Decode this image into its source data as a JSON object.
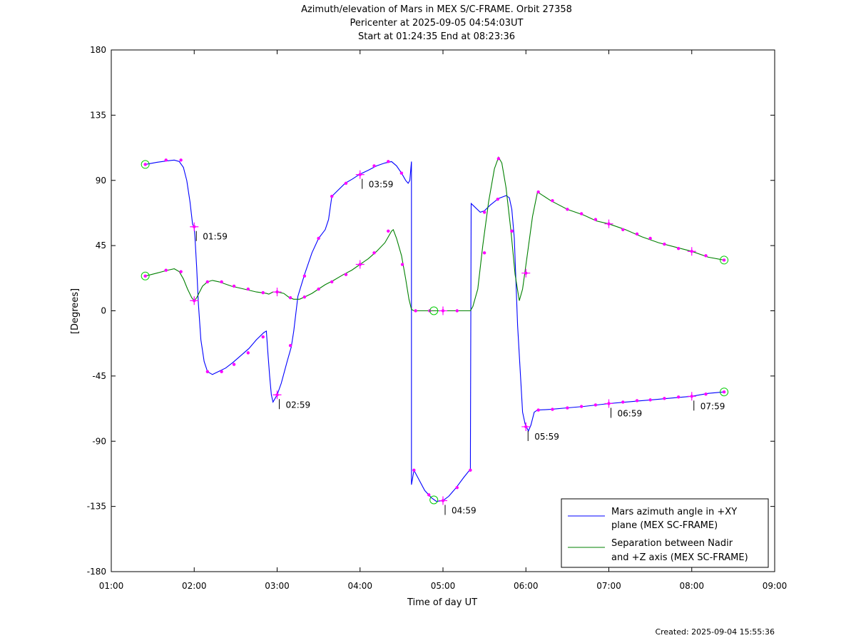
{
  "chart_data": {
    "type": "line",
    "title_lines": [
      "Azimuth/elevation of Mars in MEX S/C-FRAME.  Orbit 27358",
      "Pericenter at 2025-09-05 04:54:03UT",
      "Start at 01:24:35 End at 08:23:36"
    ],
    "xlabel": "Time of day UT",
    "ylabel": "[Degrees]",
    "footer": "Created: 2025-09-04 15:55:36",
    "xlim_hours": [
      1,
      9
    ],
    "ylim": [
      -180,
      180
    ],
    "x_ticks": [
      "01:00",
      "02:00",
      "03:00",
      "04:00",
      "05:00",
      "06:00",
      "07:00",
      "08:00",
      "09:00"
    ],
    "y_ticks": [
      "180",
      "135",
      "90",
      "45",
      "0",
      "-45",
      "-90",
      "-135",
      "-180"
    ],
    "legend_placement": "bottom-right",
    "legend": [
      {
        "line1": "Mars azimuth angle in +XY",
        "line2": "plane (MEX SC-FRAME)",
        "color": "#0000ff"
      },
      {
        "line1": "Separation between Nadir",
        "line2": "and +Z axis (MEX SC-FRAME)",
        "color": "#008000"
      }
    ],
    "marker_color": "#ff00ff",
    "circle_color": "#00cc00",
    "series": [
      {
        "color": "#0000ff",
        "points": [
          [
            1.41,
            101
          ],
          [
            1.55,
            102.5
          ],
          [
            1.68,
            103.5
          ],
          [
            1.76,
            104
          ],
          [
            1.82,
            103
          ],
          [
            1.87,
            99
          ],
          [
            1.91,
            90
          ],
          [
            1.95,
            75
          ],
          [
            1.98,
            60
          ],
          [
            2.0,
            57
          ],
          [
            2.01,
            50
          ],
          [
            2.03,
            30
          ],
          [
            2.05,
            5
          ],
          [
            2.08,
            -20
          ],
          [
            2.12,
            -35
          ],
          [
            2.16,
            -42
          ],
          [
            2.22,
            -44
          ],
          [
            2.29,
            -42
          ],
          [
            2.38,
            -39.5
          ],
          [
            2.47,
            -35.5
          ],
          [
            2.56,
            -31
          ],
          [
            2.66,
            -26
          ],
          [
            2.75,
            -20
          ],
          [
            2.84,
            -15
          ],
          [
            2.87,
            -14
          ],
          [
            2.89,
            -30
          ],
          [
            2.91,
            -45
          ],
          [
            2.93,
            -58
          ],
          [
            2.95,
            -63
          ],
          [
            2.98,
            -60
          ],
          [
            3.0,
            -58
          ],
          [
            3.05,
            -50
          ],
          [
            3.12,
            -35
          ],
          [
            3.17,
            -25
          ],
          [
            3.2,
            -14
          ],
          [
            3.25,
            10
          ],
          [
            3.33,
            25
          ],
          [
            3.42,
            40
          ],
          [
            3.5,
            50
          ],
          [
            3.58,
            56
          ],
          [
            3.62,
            63
          ],
          [
            3.66,
            79
          ],
          [
            3.73,
            83
          ],
          [
            3.82,
            88
          ],
          [
            3.91,
            91
          ],
          [
            3.99,
            94
          ],
          [
            4.1,
            97
          ],
          [
            4.2,
            100
          ],
          [
            4.3,
            102
          ],
          [
            4.38,
            103
          ],
          [
            4.44,
            100
          ],
          [
            4.5,
            95
          ],
          [
            4.55,
            90
          ],
          [
            4.58,
            88
          ],
          [
            4.6,
            90
          ],
          [
            4.62,
            103
          ],
          [
            4.62,
            -120
          ],
          [
            4.65,
            -110
          ],
          [
            4.78,
            -124
          ],
          [
            4.86,
            -129
          ],
          [
            4.92,
            -131.5
          ],
          [
            5.0,
            -131
          ],
          [
            5.07,
            -128
          ],
          [
            5.16,
            -122
          ],
          [
            5.25,
            -115
          ],
          [
            5.32,
            -110
          ],
          [
            5.33,
            -110
          ],
          [
            5.34,
            74
          ],
          [
            5.45,
            68
          ],
          [
            5.5,
            69
          ],
          [
            5.57,
            73
          ],
          [
            5.67,
            77.5
          ],
          [
            5.76,
            79.5
          ],
          [
            5.8,
            78
          ],
          [
            5.83,
            70
          ],
          [
            5.86,
            50
          ],
          [
            5.88,
            20
          ],
          [
            5.9,
            -10
          ],
          [
            5.93,
            -40
          ],
          [
            5.96,
            -70
          ],
          [
            5.99,
            -78
          ],
          [
            6.03,
            -83
          ],
          [
            6.06,
            -79
          ],
          [
            6.1,
            -70
          ],
          [
            6.14,
            -68.5
          ],
          [
            6.3,
            -68
          ],
          [
            6.5,
            -67
          ],
          [
            6.7,
            -66
          ],
          [
            6.85,
            -65
          ],
          [
            7.0,
            -64
          ],
          [
            7.2,
            -63
          ],
          [
            7.4,
            -62
          ],
          [
            7.6,
            -61
          ],
          [
            7.8,
            -60
          ],
          [
            8.0,
            -59
          ],
          [
            8.2,
            -57
          ],
          [
            8.39,
            -56
          ]
        ],
        "dots": [
          [
            1.41,
            101
          ],
          [
            1.66,
            104
          ],
          [
            1.84,
            104
          ],
          [
            2.0,
            58
          ],
          [
            2.16,
            -42
          ],
          [
            2.33,
            -42
          ],
          [
            2.48,
            -37
          ],
          [
            2.65,
            -29
          ],
          [
            2.83,
            -18
          ],
          [
            3.0,
            -58
          ],
          [
            3.16,
            -24
          ],
          [
            3.33,
            24
          ],
          [
            3.5,
            50
          ],
          [
            3.66,
            79
          ],
          [
            3.83,
            88
          ],
          [
            4.0,
            94
          ],
          [
            4.17,
            100
          ],
          [
            4.34,
            103
          ],
          [
            4.5,
            95
          ],
          [
            4.65,
            -110
          ],
          [
            4.83,
            -127
          ],
          [
            5.0,
            -131
          ],
          [
            5.17,
            -122
          ],
          [
            5.33,
            -110
          ],
          [
            5.5,
            68
          ],
          [
            5.66,
            77
          ],
          [
            5.83,
            55
          ],
          [
            6.0,
            -80
          ],
          [
            6.15,
            -68.5
          ],
          [
            6.32,
            -68
          ],
          [
            6.5,
            -67
          ],
          [
            6.67,
            -66
          ],
          [
            6.84,
            -65
          ],
          [
            7.0,
            -64
          ],
          [
            7.17,
            -63
          ],
          [
            7.34,
            -62
          ],
          [
            7.5,
            -61.5
          ],
          [
            7.67,
            -60.5
          ],
          [
            7.84,
            -59.5
          ],
          [
            8.0,
            -59
          ],
          [
            8.17,
            -57.5
          ],
          [
            8.39,
            -56
          ]
        ],
        "crosses": [
          [
            2.0,
            58
          ],
          [
            3.0,
            -58
          ],
          [
            4.0,
            94
          ],
          [
            5.0,
            -131
          ],
          [
            6.0,
            -80
          ],
          [
            7.0,
            -64
          ],
          [
            8.0,
            -59
          ]
        ],
        "circles": [
          [
            1.41,
            101
          ],
          [
            4.89,
            -130.5
          ],
          [
            8.39,
            -56
          ]
        ]
      },
      {
        "color": "#008000",
        "points": [
          [
            1.41,
            24
          ],
          [
            1.55,
            26
          ],
          [
            1.68,
            28
          ],
          [
            1.76,
            29
          ],
          [
            1.82,
            27
          ],
          [
            1.87,
            22
          ],
          [
            1.92,
            15
          ],
          [
            1.97,
            9
          ],
          [
            2.0,
            7
          ],
          [
            2.03,
            9
          ],
          [
            2.1,
            17
          ],
          [
            2.16,
            20
          ],
          [
            2.22,
            21
          ],
          [
            2.3,
            20
          ],
          [
            2.45,
            17
          ],
          [
            2.6,
            15
          ],
          [
            2.75,
            13
          ],
          [
            2.87,
            12
          ],
          [
            2.9,
            11.5
          ],
          [
            2.95,
            13
          ],
          [
            3.0,
            13
          ],
          [
            3.08,
            12
          ],
          [
            3.15,
            9
          ],
          [
            3.2,
            8
          ],
          [
            3.27,
            8
          ],
          [
            3.33,
            9.5
          ],
          [
            3.42,
            12
          ],
          [
            3.5,
            15
          ],
          [
            3.58,
            18
          ],
          [
            3.68,
            21
          ],
          [
            3.8,
            25
          ],
          [
            3.9,
            28
          ],
          [
            4.0,
            32
          ],
          [
            4.1,
            36
          ],
          [
            4.2,
            41
          ],
          [
            4.3,
            47
          ],
          [
            4.38,
            55
          ],
          [
            4.4,
            56
          ],
          [
            4.44,
            50
          ],
          [
            4.5,
            38
          ],
          [
            4.55,
            22
          ],
          [
            4.59,
            8
          ],
          [
            4.62,
            1
          ],
          [
            4.65,
            0
          ],
          [
            5.0,
            0
          ],
          [
            5.33,
            0
          ],
          [
            5.36,
            3
          ],
          [
            5.42,
            15
          ],
          [
            5.48,
            45
          ],
          [
            5.55,
            75
          ],
          [
            5.62,
            98
          ],
          [
            5.67,
            106
          ],
          [
            5.71,
            102
          ],
          [
            5.76,
            85
          ],
          [
            5.82,
            55
          ],
          [
            5.87,
            25
          ],
          [
            5.92,
            7
          ],
          [
            5.96,
            15
          ],
          [
            6.02,
            40
          ],
          [
            6.08,
            65
          ],
          [
            6.14,
            82
          ],
          [
            6.3,
            76
          ],
          [
            6.5,
            70
          ],
          [
            6.7,
            66
          ],
          [
            6.85,
            62
          ],
          [
            7.0,
            60
          ],
          [
            7.2,
            56
          ],
          [
            7.4,
            51
          ],
          [
            7.6,
            47
          ],
          [
            7.8,
            44
          ],
          [
            8.0,
            41
          ],
          [
            8.2,
            37
          ],
          [
            8.39,
            35
          ]
        ],
        "dots": [
          [
            1.41,
            24
          ],
          [
            1.66,
            28
          ],
          [
            1.84,
            27
          ],
          [
            2.0,
            7
          ],
          [
            2.16,
            20
          ],
          [
            2.33,
            20
          ],
          [
            2.48,
            17
          ],
          [
            2.65,
            15
          ],
          [
            2.83,
            12.5
          ],
          [
            3.0,
            13
          ],
          [
            3.16,
            9
          ],
          [
            3.33,
            9.5
          ],
          [
            3.5,
            15
          ],
          [
            3.66,
            20
          ],
          [
            3.83,
            25
          ],
          [
            4.0,
            32
          ],
          [
            4.17,
            40
          ],
          [
            4.34,
            55
          ],
          [
            4.51,
            32
          ],
          [
            4.67,
            0
          ],
          [
            4.84,
            0
          ],
          [
            5.0,
            0
          ],
          [
            5.17,
            0
          ],
          [
            5.5,
            40
          ],
          [
            5.67,
            105
          ],
          [
            5.83,
            55
          ],
          [
            6.0,
            26
          ],
          [
            6.15,
            82
          ],
          [
            6.32,
            76
          ],
          [
            6.5,
            70
          ],
          [
            6.67,
            67
          ],
          [
            6.84,
            63
          ],
          [
            7.0,
            60
          ],
          [
            7.17,
            56
          ],
          [
            7.34,
            53
          ],
          [
            7.5,
            50
          ],
          [
            7.67,
            46
          ],
          [
            7.84,
            43
          ],
          [
            8.0,
            41
          ],
          [
            8.17,
            38
          ],
          [
            8.39,
            35
          ]
        ],
        "crosses": [
          [
            2.0,
            7
          ],
          [
            3.0,
            13
          ],
          [
            4.0,
            32
          ],
          [
            5.0,
            0
          ],
          [
            6.0,
            26
          ],
          [
            7.0,
            60
          ],
          [
            8.0,
            41
          ]
        ],
        "circles": [
          [
            1.41,
            24
          ],
          [
            4.89,
            0
          ],
          [
            8.39,
            35
          ]
        ]
      }
    ],
    "time_labels": [
      {
        "text": "01:59",
        "x": 2.0,
        "y": 58
      },
      {
        "text": "02:59",
        "x": 3.0,
        "y": -58
      },
      {
        "text": "03:59",
        "x": 4.0,
        "y": 94
      },
      {
        "text": "04:59",
        "x": 5.0,
        "y": -131
      },
      {
        "text": "05:59",
        "x": 6.0,
        "y": -80
      },
      {
        "text": "06:59",
        "x": 7.0,
        "y": -64
      },
      {
        "text": "07:59",
        "x": 8.0,
        "y": -59
      }
    ]
  }
}
